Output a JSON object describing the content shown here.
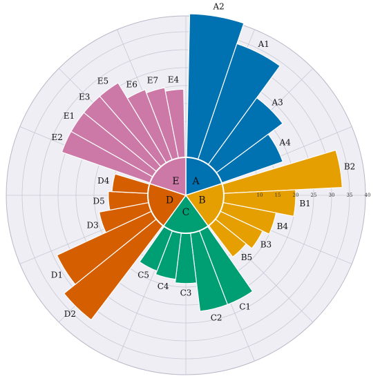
{
  "chart_data": {
    "type": "bar",
    "subtype": "grouped-polar-bar",
    "radial_ticks": [
      10,
      15,
      20,
      25,
      30,
      35,
      40
    ],
    "rlim": [
      0,
      40
    ],
    "grid": true,
    "background": "#eeeef4",
    "groups": [
      {
        "name": "A",
        "color": "#0072b2",
        "categories": [
          "A2",
          "A1",
          "A3",
          "A4"
        ],
        "values": [
          40,
          34,
          23,
          18
        ]
      },
      {
        "name": "B",
        "color": "#e69f00",
        "categories": [
          "B2",
          "B1",
          "B4",
          "B3",
          "B5"
        ],
        "values": [
          33,
          20,
          15,
          13,
          11
        ]
      },
      {
        "name": "C",
        "color": "#009e73",
        "categories": [
          "C1",
          "C2",
          "C3",
          "C4",
          "C5"
        ],
        "values": [
          22,
          22,
          14,
          13,
          12
        ]
      },
      {
        "name": "D",
        "color": "#d55e00",
        "categories": [
          "D2",
          "D1",
          "D3",
          "D5",
          "D4"
        ],
        "values": [
          33,
          29,
          14,
          11,
          10
        ]
      },
      {
        "name": "E",
        "color": "#cc79a7",
        "categories": [
          "E2",
          "E1",
          "E3",
          "E5",
          "E6",
          "E7",
          "E4"
        ],
        "values": [
          26,
          26,
          26,
          26,
          21,
          20,
          19
        ]
      }
    ]
  }
}
